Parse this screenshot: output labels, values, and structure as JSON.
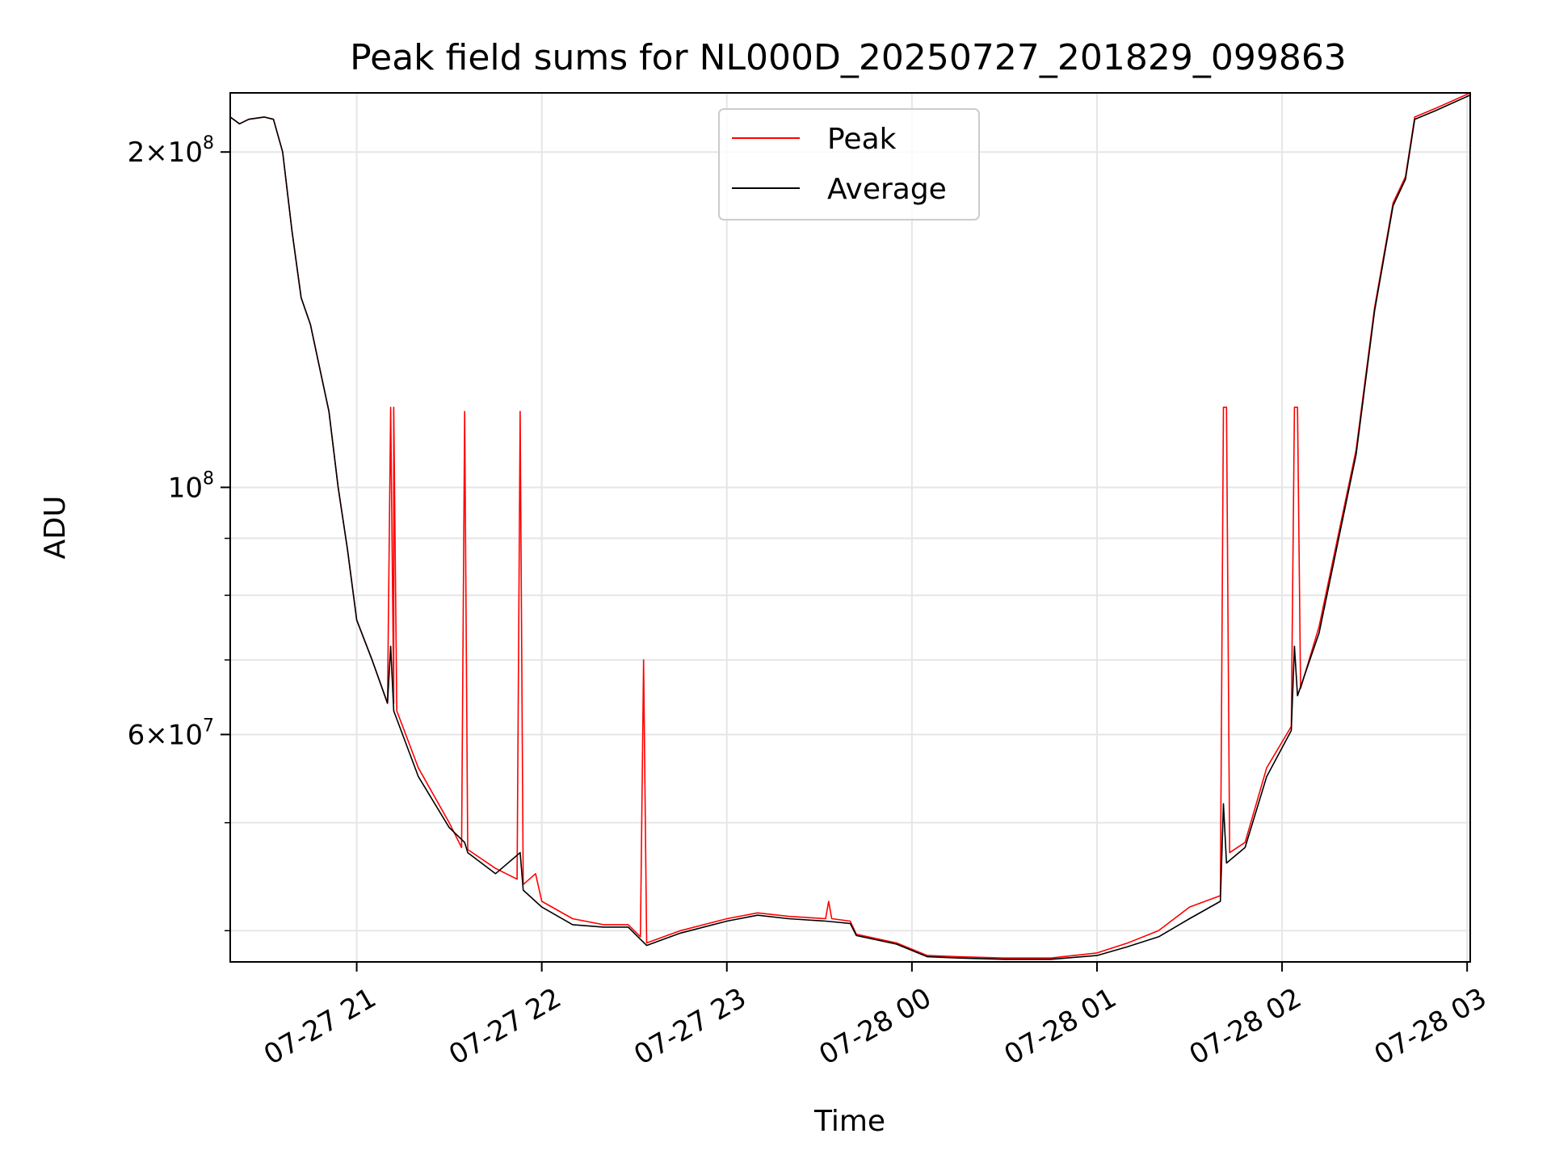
{
  "chart_data": {
    "type": "line",
    "title": "Peak field sums for NL000D_20250727_201829_099863",
    "xlabel": "Time",
    "ylabel": "ADU",
    "x_axis": {
      "type": "datetime",
      "xlim": [
        "2025-07-27 20:19",
        "2025-07-28 03:01"
      ],
      "ticks": [
        {
          "value": "2025-07-27 21:00",
          "label": "07-27 21"
        },
        {
          "value": "2025-07-27 22:00",
          "label": "07-27 22"
        },
        {
          "value": "2025-07-27 23:00",
          "label": "07-27 23"
        },
        {
          "value": "2025-07-28 00:00",
          "label": "07-28 00"
        },
        {
          "value": "2025-07-28 01:00",
          "label": "07-28 01"
        },
        {
          "value": "2025-07-28 02:00",
          "label": "07-28 02"
        },
        {
          "value": "2025-07-28 03:00",
          "label": "07-28 03"
        }
      ]
    },
    "y_axis": {
      "scale": "log",
      "ylim": [
        37500000,
        226000000
      ],
      "major_ticks": [
        {
          "value": 60000000,
          "mantissa": "6",
          "exponent": "7"
        },
        {
          "value": 100000000,
          "mantissa": "",
          "exponent": "8"
        },
        {
          "value": 200000000,
          "mantissa": "2",
          "exponent": "8"
        }
      ],
      "minor_gridlines": [
        40000000,
        50000000,
        70000000,
        80000000,
        90000000
      ]
    },
    "grid": true,
    "legend": {
      "placement": "top-center"
    },
    "series": [
      {
        "name": "Peak",
        "color": "#ff0000",
        "points": [
          [
            "2025-07-27 20:19",
            215000000
          ],
          [
            "2025-07-27 20:22",
            212000000
          ],
          [
            "2025-07-27 20:25",
            214000000
          ],
          [
            "2025-07-27 20:30",
            215000000
          ],
          [
            "2025-07-27 20:33",
            214000000
          ],
          [
            "2025-07-27 20:36",
            200000000
          ],
          [
            "2025-07-27 20:39",
            170000000
          ],
          [
            "2025-07-27 20:42",
            148000000
          ],
          [
            "2025-07-27 20:45",
            140000000
          ],
          [
            "2025-07-27 20:48",
            128000000
          ],
          [
            "2025-07-27 20:51",
            117000000
          ],
          [
            "2025-07-27 20:54",
            100000000
          ],
          [
            "2025-07-27 20:57",
            88000000
          ],
          [
            "2025-07-27 21:00",
            76000000
          ],
          [
            "2025-07-27 21:05",
            70000000
          ],
          [
            "2025-07-27 21:10",
            64000000
          ],
          [
            "2025-07-27 21:11",
            118000000
          ],
          [
            "2025-07-27 21:12",
            64000000
          ],
          [
            "2025-07-27 21:12",
            118000000
          ],
          [
            "2025-07-27 21:13",
            63000000
          ],
          [
            "2025-07-27 21:20",
            56000000
          ],
          [
            "2025-07-27 21:30",
            50000000
          ],
          [
            "2025-07-27 21:34",
            47500000
          ],
          [
            "2025-07-27 21:35",
            117000000
          ],
          [
            "2025-07-27 21:36",
            47300000
          ],
          [
            "2025-07-27 21:45",
            45500000
          ],
          [
            "2025-07-27 21:52",
            44500000
          ],
          [
            "2025-07-27 21:53",
            117000000
          ],
          [
            "2025-07-27 21:54",
            44000000
          ],
          [
            "2025-07-27 21:58",
            45000000
          ],
          [
            "2025-07-27 22:00",
            42500000
          ],
          [
            "2025-07-27 22:10",
            41000000
          ],
          [
            "2025-07-27 22:20",
            40500000
          ],
          [
            "2025-07-27 22:28",
            40500000
          ],
          [
            "2025-07-27 22:32",
            39500000
          ],
          [
            "2025-07-27 22:33",
            70000000
          ],
          [
            "2025-07-27 22:34",
            39000000
          ],
          [
            "2025-07-27 22:45",
            40000000
          ],
          [
            "2025-07-27 23:00",
            41000000
          ],
          [
            "2025-07-27 23:10",
            41500000
          ],
          [
            "2025-07-27 23:20",
            41200000
          ],
          [
            "2025-07-27 23:32",
            41000000
          ],
          [
            "2025-07-27 23:33",
            42500000
          ],
          [
            "2025-07-27 23:34",
            41000000
          ],
          [
            "2025-07-27 23:40",
            40800000
          ],
          [
            "2025-07-27 23:42",
            39700000
          ],
          [
            "2025-07-27 23:55",
            39000000
          ],
          [
            "2025-07-28 00:05",
            38000000
          ],
          [
            "2025-07-28 00:15",
            37900000
          ],
          [
            "2025-07-28 00:30",
            37800000
          ],
          [
            "2025-07-28 00:45",
            37800000
          ],
          [
            "2025-07-28 01:00",
            38200000
          ],
          [
            "2025-07-28 01:10",
            39000000
          ],
          [
            "2025-07-28 01:20",
            40000000
          ],
          [
            "2025-07-28 01:30",
            42000000
          ],
          [
            "2025-07-28 01:40",
            43000000
          ],
          [
            "2025-07-28 01:41",
            118000000
          ],
          [
            "2025-07-28 01:42",
            118000000
          ],
          [
            "2025-07-28 01:43",
            47000000
          ],
          [
            "2025-07-28 01:48",
            48000000
          ],
          [
            "2025-07-28 01:55",
            56000000
          ],
          [
            "2025-07-28 02:03",
            61000000
          ],
          [
            "2025-07-28 02:04",
            118000000
          ],
          [
            "2025-07-28 02:05",
            118000000
          ],
          [
            "2025-07-28 02:06",
            66000000
          ],
          [
            "2025-07-28 02:12",
            75000000
          ],
          [
            "2025-07-28 02:18",
            90000000
          ],
          [
            "2025-07-28 02:24",
            108000000
          ],
          [
            "2025-07-28 02:30",
            145000000
          ],
          [
            "2025-07-28 02:36",
            180000000
          ],
          [
            "2025-07-28 02:40",
            190000000
          ],
          [
            "2025-07-28 02:43",
            215000000
          ],
          [
            "2025-07-28 02:50",
            219000000
          ],
          [
            "2025-07-28 03:01",
            226000000
          ]
        ]
      },
      {
        "name": "Average",
        "color": "#000000",
        "points": [
          [
            "2025-07-27 20:19",
            215000000
          ],
          [
            "2025-07-27 20:22",
            212000000
          ],
          [
            "2025-07-27 20:25",
            214000000
          ],
          [
            "2025-07-27 20:30",
            215000000
          ],
          [
            "2025-07-27 20:33",
            214000000
          ],
          [
            "2025-07-27 20:36",
            200000000
          ],
          [
            "2025-07-27 20:39",
            170000000
          ],
          [
            "2025-07-27 20:42",
            148000000
          ],
          [
            "2025-07-27 20:45",
            140000000
          ],
          [
            "2025-07-27 20:48",
            128000000
          ],
          [
            "2025-07-27 20:51",
            117000000
          ],
          [
            "2025-07-27 20:54",
            100000000
          ],
          [
            "2025-07-27 20:57",
            88000000
          ],
          [
            "2025-07-27 21:00",
            76000000
          ],
          [
            "2025-07-27 21:05",
            70000000
          ],
          [
            "2025-07-27 21:10",
            64000000
          ],
          [
            "2025-07-27 21:11",
            72000000
          ],
          [
            "2025-07-27 21:12",
            63000000
          ],
          [
            "2025-07-27 21:20",
            55000000
          ],
          [
            "2025-07-27 21:30",
            49500000
          ],
          [
            "2025-07-27 21:35",
            48000000
          ],
          [
            "2025-07-27 21:36",
            47000000
          ],
          [
            "2025-07-27 21:45",
            45000000
          ],
          [
            "2025-07-27 21:53",
            47000000
          ],
          [
            "2025-07-27 21:54",
            43500000
          ],
          [
            "2025-07-27 22:00",
            42000000
          ],
          [
            "2025-07-27 22:10",
            40500000
          ],
          [
            "2025-07-27 22:20",
            40300000
          ],
          [
            "2025-07-27 22:28",
            40300000
          ],
          [
            "2025-07-27 22:34",
            38800000
          ],
          [
            "2025-07-27 22:45",
            39800000
          ],
          [
            "2025-07-27 23:00",
            40800000
          ],
          [
            "2025-07-27 23:10",
            41300000
          ],
          [
            "2025-07-27 23:20",
            41000000
          ],
          [
            "2025-07-27 23:32",
            40800000
          ],
          [
            "2025-07-27 23:40",
            40600000
          ],
          [
            "2025-07-27 23:42",
            39600000
          ],
          [
            "2025-07-27 23:55",
            38900000
          ],
          [
            "2025-07-28 00:05",
            37900000
          ],
          [
            "2025-07-28 00:15",
            37800000
          ],
          [
            "2025-07-28 00:30",
            37700000
          ],
          [
            "2025-07-28 00:45",
            37700000
          ],
          [
            "2025-07-28 01:00",
            38000000
          ],
          [
            "2025-07-28 01:10",
            38700000
          ],
          [
            "2025-07-28 01:20",
            39500000
          ],
          [
            "2025-07-28 01:30",
            41000000
          ],
          [
            "2025-07-28 01:40",
            42500000
          ],
          [
            "2025-07-28 01:41",
            52000000
          ],
          [
            "2025-07-28 01:42",
            46000000
          ],
          [
            "2025-07-28 01:48",
            47500000
          ],
          [
            "2025-07-28 01:55",
            55000000
          ],
          [
            "2025-07-28 02:03",
            60500000
          ],
          [
            "2025-07-28 02:04",
            72000000
          ],
          [
            "2025-07-28 02:05",
            65000000
          ],
          [
            "2025-07-28 02:12",
            74000000
          ],
          [
            "2025-07-28 02:18",
            89000000
          ],
          [
            "2025-07-28 02:24",
            107000000
          ],
          [
            "2025-07-28 02:30",
            144000000
          ],
          [
            "2025-07-28 02:36",
            179000000
          ],
          [
            "2025-07-28 02:40",
            189000000
          ],
          [
            "2025-07-28 02:43",
            214000000
          ],
          [
            "2025-07-28 02:50",
            218000000
          ],
          [
            "2025-07-28 03:01",
            225000000
          ]
        ]
      }
    ]
  }
}
